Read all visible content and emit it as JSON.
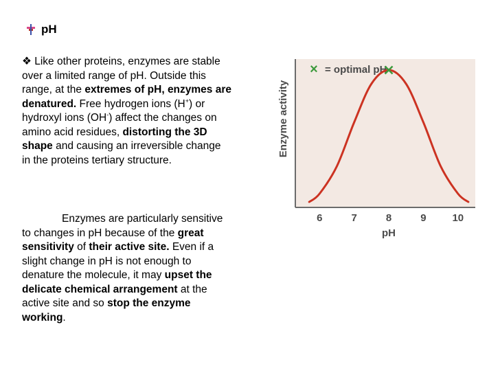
{
  "heading": {
    "title": "pH"
  },
  "para1": {
    "bullet": "❖",
    "t1": " Like other proteins, enzymes are stable over a limited range of pH. Outside this range, at the ",
    "b1": "extremes of pH, enzymes are denatured.",
    "t2": " Free hydrogen ions (H",
    "sup1": "+",
    "t3": ") or hydroxyl ions (OH",
    "sup2": "-",
    "t4": ") affect the changes on amino acid residues, ",
    "b2": "distorting the 3D shape",
    "t5": " and causing an irreversible change in the proteins tertiary structure."
  },
  "para2": {
    "t1": "Enzymes are particularly sensitive to changes in pH because of the ",
    "b1": "great sensitivity",
    "t2": " of ",
    "b2": "their active site.",
    "t3": " Even if a slight change in pH is not enough to denature the molecule, it may ",
    "b3": "upset the delicate chemical arrangement",
    "t4": " at the active site and so ",
    "b4": "stop the enzyme working",
    "t5": "."
  },
  "chart_data": {
    "type": "line",
    "xlabel": "pH",
    "ylabel": "Enzyme activity",
    "xticks": [
      6,
      7,
      8,
      9,
      10
    ],
    "xlim": [
      5.3,
      10.5
    ],
    "ylim": [
      0,
      1.08
    ],
    "legend": {
      "marker": "×",
      "label": "= optimal pH",
      "position": "top-left"
    },
    "optimum": {
      "x": 8,
      "y": 1
    },
    "curve": {
      "x": [
        5.7,
        6,
        6.5,
        7,
        7.5,
        8,
        8.5,
        9,
        9.5,
        10,
        10.3
      ],
      "y": [
        0.04,
        0.1,
        0.3,
        0.62,
        0.9,
        1,
        0.9,
        0.62,
        0.3,
        0.1,
        0.04
      ]
    },
    "colors": {
      "background": "#f3e9e3",
      "curve": "#cc3322",
      "marker": "#3d9a3d",
      "axis": "#6b6b6b",
      "text": "#4a4a4a"
    }
  }
}
